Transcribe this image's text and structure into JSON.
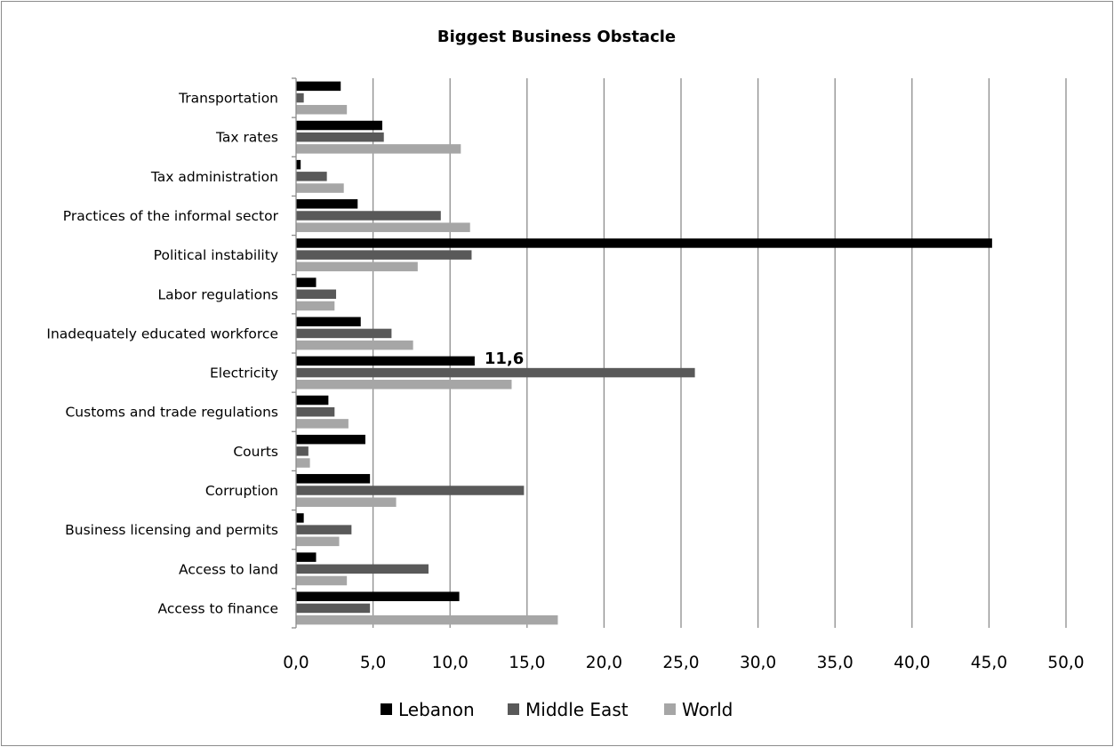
{
  "chart_data": {
    "type": "bar",
    "orientation": "horizontal",
    "title": "Biggest Business Obstacle",
    "xlabel": "",
    "ylabel": "",
    "xlim": [
      0,
      50
    ],
    "x_ticks": [
      "0,0",
      "5,0",
      "10,0",
      "15,0",
      "20,0",
      "25,0",
      "30,0",
      "35,0",
      "40,0",
      "45,0",
      "50,0"
    ],
    "grid": "vertical",
    "legend_position": "bottom",
    "categories": [
      "Transportation",
      "Tax rates",
      "Tax administration",
      "Practices of the informal sector",
      "Political instability",
      "Labor regulations",
      "Inadequately educated workforce",
      "Electricity",
      "Customs and trade regulations",
      "Courts",
      "Corruption",
      "Business licensing and permits",
      "Access to land",
      "Access to finance"
    ],
    "series": [
      {
        "name": "Lebanon",
        "color": "#000000",
        "values": [
          2.9,
          5.6,
          0.3,
          4.0,
          45.2,
          1.3,
          4.2,
          11.6,
          2.1,
          4.5,
          4.8,
          0.5,
          1.3,
          10.6
        ]
      },
      {
        "name": "Middle East",
        "color": "#595959",
        "values": [
          0.5,
          5.7,
          2.0,
          9.4,
          11.4,
          2.6,
          6.2,
          25.9,
          2.5,
          0.8,
          14.8,
          3.6,
          8.6,
          4.8
        ]
      },
      {
        "name": "World",
        "color": "#a6a6a6",
        "values": [
          3.3,
          10.7,
          3.1,
          11.3,
          7.9,
          2.5,
          7.6,
          14.0,
          3.4,
          0.9,
          6.5,
          2.8,
          3.3,
          17.0
        ]
      }
    ],
    "annotations": [
      {
        "category": "Electricity",
        "series": "Lebanon",
        "text": "11,6"
      }
    ]
  }
}
